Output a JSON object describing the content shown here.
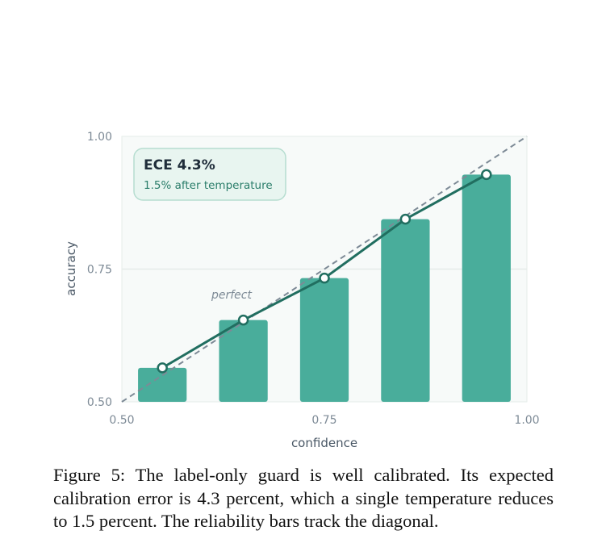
{
  "chart_data": {
    "type": "bar",
    "xlabel": "confidence",
    "ylabel": "accuracy",
    "xlim": [
      0.5,
      1.0
    ],
    "ylim": [
      0.5,
      1.0
    ],
    "xticks": [
      "0.50",
      "0.75",
      "1.00"
    ],
    "yticks": [
      "0.50",
      "0.75",
      "1.00"
    ],
    "bin_width": 0.1,
    "bar_width": 0.06,
    "bins": [
      0.55,
      0.65,
      0.75,
      0.85,
      0.95
    ],
    "values": [
      0.564,
      0.654,
      0.733,
      0.844,
      0.928
    ],
    "line_values": [
      0.564,
      0.654,
      0.733,
      0.844,
      0.928
    ],
    "diagonal_label": "perfect",
    "annotation": {
      "title": "ECE 4.3%",
      "subtitle": "1.5% after temperature"
    },
    "grid": true,
    "colors": {
      "bar": "#49ad9b",
      "line": "#216e60",
      "marker_fill": "#ffffff",
      "diagonal": "#7d8a96",
      "plot_bg": "#f7faf9",
      "box_fill": "#e8f5f0",
      "box_border": "#b6ddd0",
      "grid": "#e6ece9"
    }
  },
  "caption": "Figure 5: The label-only guard is well calibrated. Its expected calibration error is 4.3 percent, which a single temperature reduces to 1.5 percent. The reliability bars track the diagonal."
}
